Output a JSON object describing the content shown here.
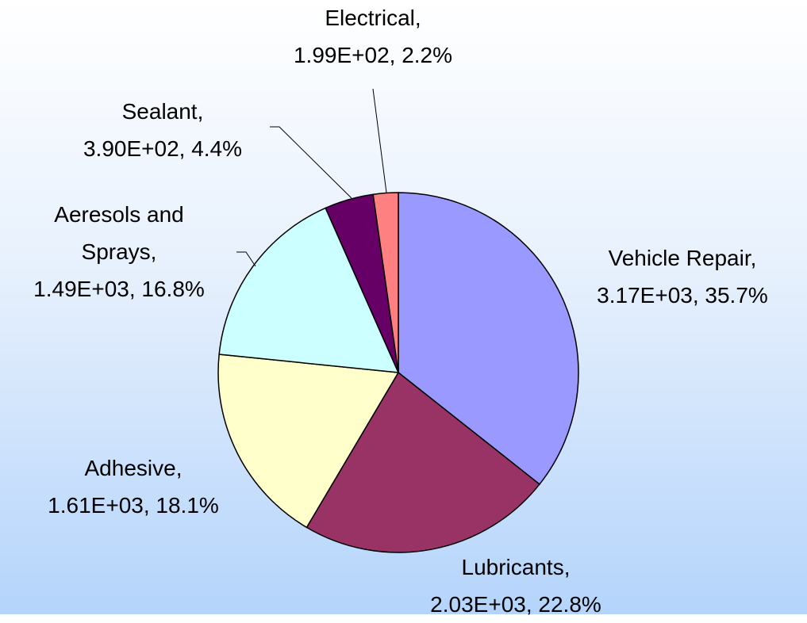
{
  "chart_data": {
    "type": "pie",
    "categories": [
      "Vehicle Repair,",
      "Lubricants,",
      "Adhesive,",
      "Aeresols and Sprays,",
      "Sealant,",
      "Electrical,"
    ],
    "values": [
      3170,
      2030,
      1610,
      1490,
      390,
      199
    ],
    "value_labels": [
      "3.17E+03,",
      "2.03E+03,",
      "1.61E+03,",
      "1.49E+03,",
      "3.90E+02,",
      "1.99E+02,"
    ],
    "percents": [
      35.7,
      22.8,
      18.1,
      16.8,
      4.4,
      2.2
    ],
    "percent_labels": [
      "35.7%",
      "22.8%",
      "18.1%",
      "16.8%",
      "4.4%",
      "2.2%"
    ],
    "colors": [
      "#9999ff",
      "#993366",
      "#ffffcc",
      "#ccffff",
      "#660066",
      "#ff8080"
    ]
  }
}
